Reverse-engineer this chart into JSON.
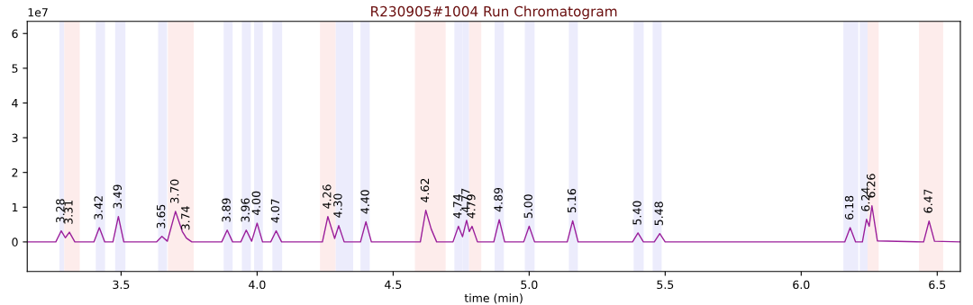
{
  "chart_data": {
    "type": "line",
    "title": "R230905#1004 Run Chromatogram",
    "xlabel": "time (min)",
    "x": [
      3.155,
      3.26,
      3.28,
      3.295,
      3.31,
      3.33,
      3.4,
      3.42,
      3.44,
      3.47,
      3.49,
      3.51,
      3.63,
      3.65,
      3.67,
      3.7,
      3.725,
      3.74,
      3.76,
      3.87,
      3.89,
      3.91,
      3.94,
      3.96,
      3.98,
      4.0,
      4.02,
      4.05,
      4.07,
      4.09,
      4.24,
      4.26,
      4.285,
      4.3,
      4.32,
      4.38,
      4.4,
      4.42,
      4.6,
      4.62,
      4.64,
      4.66,
      4.72,
      4.74,
      4.755,
      4.77,
      4.78,
      4.79,
      4.81,
      4.87,
      4.89,
      4.91,
      4.98,
      5.0,
      5.02,
      5.14,
      5.16,
      5.18,
      5.38,
      5.4,
      5.42,
      5.46,
      5.48,
      5.5,
      6.16,
      6.18,
      6.2,
      6.225,
      6.24,
      6.25,
      6.26,
      6.28,
      6.45,
      6.47,
      6.49,
      6.585
    ],
    "series": [
      {
        "color": "#9b1f9b",
        "values": [
          0,
          0,
          0.32,
          0.12,
          0.28,
          0,
          0,
          0.41,
          0,
          0,
          0.73,
          0,
          0,
          0.16,
          0.02,
          0.88,
          0.3,
          0.11,
          0,
          0,
          0.34,
          0,
          0,
          0.34,
          0.02,
          0.54,
          0,
          0,
          0.32,
          0,
          0,
          0.73,
          0.1,
          0.47,
          0,
          0,
          0.58,
          0,
          0,
          0.91,
          0.37,
          0,
          0,
          0.45,
          0.15,
          0.62,
          0.3,
          0.45,
          0,
          0,
          0.64,
          0,
          0,
          0.45,
          0,
          0,
          0.61,
          0,
          0,
          0.26,
          0,
          0,
          0.24,
          0,
          0,
          0.41,
          0,
          0,
          0.65,
          0.45,
          1.04,
          0.03,
          0,
          0.6,
          0.02,
          0
        ]
      }
    ],
    "xlim": [
      3.155,
      6.585
    ],
    "ylim": [
      -0.85,
      6.35
    ],
    "xticks": [
      3.5,
      {
        "value": 4,
        "label": "4.0"
      },
      4.5,
      {
        "value": 5,
        "label": "5.0"
      },
      5.5,
      {
        "value": 6,
        "label": "6.0"
      },
      6.5
    ],
    "yticks": [
      0,
      1,
      2,
      3,
      4,
      5,
      6
    ],
    "grid": false,
    "legend": false,
    "marker": "none",
    "line_style": "solid",
    "bands": [
      {
        "axis": "x",
        "from": 3.273,
        "to": 3.291,
        "color": "#ececfc"
      },
      {
        "axis": "x",
        "from": 3.291,
        "to": 3.348,
        "color": "#fdeceb"
      },
      {
        "axis": "x",
        "from": 3.407,
        "to": 3.441,
        "color": "#ececfc"
      },
      {
        "axis": "x",
        "from": 3.478,
        "to": 3.516,
        "color": "#ececfc"
      },
      {
        "axis": "x",
        "from": 3.636,
        "to": 3.669,
        "color": "#ececfc"
      },
      {
        "axis": "x",
        "from": 3.672,
        "to": 3.767,
        "color": "#fdeceb"
      },
      {
        "axis": "x",
        "from": 3.877,
        "to": 3.91,
        "color": "#ececfc"
      },
      {
        "axis": "x",
        "from": 3.944,
        "to": 3.977,
        "color": "#ececfc"
      },
      {
        "axis": "x",
        "from": 3.989,
        "to": 4.021,
        "color": "#ececfc"
      },
      {
        "axis": "x",
        "from": 4.056,
        "to": 4.092,
        "color": "#ececfc"
      },
      {
        "axis": "x",
        "from": 4.231,
        "to": 4.289,
        "color": "#fdeceb"
      },
      {
        "axis": "x",
        "from": 4.289,
        "to": 4.353,
        "color": "#ececfc"
      },
      {
        "axis": "x",
        "from": 4.38,
        "to": 4.414,
        "color": "#ececfc"
      },
      {
        "axis": "x",
        "from": 4.58,
        "to": 4.693,
        "color": "#fdeceb"
      },
      {
        "axis": "x",
        "from": 4.725,
        "to": 4.755,
        "color": "#ececfc"
      },
      {
        "axis": "x",
        "from": 4.755,
        "to": 4.779,
        "color": "#ececfc"
      },
      {
        "axis": "x",
        "from": 4.779,
        "to": 4.824,
        "color": "#fdeceb"
      },
      {
        "axis": "x",
        "from": 4.873,
        "to": 4.907,
        "color": "#ececfc"
      },
      {
        "axis": "x",
        "from": 4.984,
        "to": 5.02,
        "color": "#ececfc"
      },
      {
        "axis": "x",
        "from": 5.146,
        "to": 5.179,
        "color": "#ececfc"
      },
      {
        "axis": "x",
        "from": 5.384,
        "to": 5.421,
        "color": "#ececfc"
      },
      {
        "axis": "x",
        "from": 5.454,
        "to": 5.487,
        "color": "#ececfc"
      },
      {
        "axis": "x",
        "from": 6.155,
        "to": 6.21,
        "color": "#ececfc"
      },
      {
        "axis": "x",
        "from": 6.215,
        "to": 6.244,
        "color": "#ececfc"
      },
      {
        "axis": "x",
        "from": 6.244,
        "to": 6.285,
        "color": "#fdeceb"
      },
      {
        "axis": "x",
        "from": 6.433,
        "to": 6.522,
        "color": "#fdeceb"
      }
    ],
    "annotations": [
      "1e7",
      {
        "text": "3.28",
        "x": 3.28,
        "y": 0.32
      },
      {
        "text": "3.31",
        "x": 3.31,
        "y": 0.28
      },
      {
        "text": "3.42",
        "x": 3.42,
        "y": 0.41
      },
      {
        "text": "3.49",
        "x": 3.49,
        "y": 0.73
      },
      {
        "text": "3.65",
        "x": 3.65,
        "y": 0.16
      },
      {
        "text": "3.70",
        "x": 3.7,
        "y": 0.88
      },
      {
        "text": "3.74",
        "x": 3.74,
        "y": 0.11
      },
      {
        "text": "3.89",
        "x": 3.89,
        "y": 0.34
      },
      {
        "text": "3.96",
        "x": 3.96,
        "y": 0.34
      },
      {
        "text": "4.00",
        "x": 4.0,
        "y": 0.54
      },
      {
        "text": "4.07",
        "x": 4.07,
        "y": 0.32
      },
      {
        "text": "4.26",
        "x": 4.26,
        "y": 0.73
      },
      {
        "text": "4.30",
        "x": 4.3,
        "y": 0.47
      },
      {
        "text": "4.40",
        "x": 4.4,
        "y": 0.58
      },
      {
        "text": "4.62",
        "x": 4.62,
        "y": 0.91
      },
      {
        "text": "4.74",
        "x": 4.74,
        "y": 0.45
      },
      {
        "text": "4.77",
        "x": 4.77,
        "y": 0.62
      },
      {
        "text": "4.79",
        "x": 4.79,
        "y": 0.45
      },
      {
        "text": "4.89",
        "x": 4.89,
        "y": 0.64
      },
      {
        "text": "5.00",
        "x": 5.0,
        "y": 0.45
      },
      {
        "text": "5.16",
        "x": 5.16,
        "y": 0.61
      },
      {
        "text": "5.40",
        "x": 5.4,
        "y": 0.26
      },
      {
        "text": "5.48",
        "x": 5.48,
        "y": 0.24
      },
      {
        "text": "6.18",
        "x": 6.18,
        "y": 0.41
      },
      {
        "text": "6.24",
        "x": 6.24,
        "y": 0.65
      },
      {
        "text": "6.26",
        "x": 6.26,
        "y": 1.04
      },
      {
        "text": "6.47",
        "x": 6.47,
        "y": 0.6
      }
    ]
  }
}
